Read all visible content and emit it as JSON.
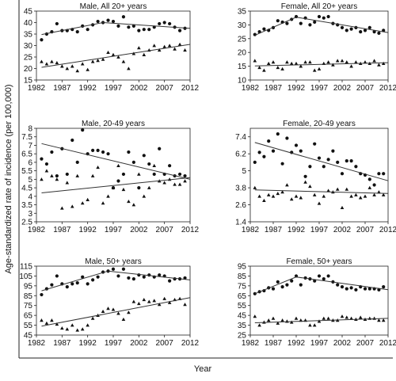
{
  "figure": {
    "ylabel": "Age-standardized rate of incidence (per 100,000)",
    "xlabel": "Year"
  },
  "chart_data": [
    {
      "type": "scatter",
      "title": "Male, All 20+ years",
      "xlim": [
        1982,
        2012
      ],
      "ylim": [
        15,
        45
      ],
      "xticks": [
        "1982",
        "1987",
        "1992",
        "1997",
        "2002",
        "2007",
        "2012"
      ],
      "yticks": [
        15,
        20,
        25,
        30,
        35,
        40,
        45
      ],
      "ytick_labels": [
        "15",
        "20",
        "25",
        "30",
        "35",
        "40",
        "45"
      ],
      "series": [
        {
          "marker": "circle",
          "x": [
            1983,
            1984,
            1985,
            1986,
            1987,
            1988,
            1989,
            1990,
            1991,
            1992,
            1993,
            1994,
            1995,
            1996,
            1997,
            1998,
            1999,
            2000,
            2001,
            2002,
            2003,
            2004,
            2005,
            2006,
            2007,
            2008,
            2009,
            2010,
            2011
          ],
          "y": [
            32.5,
            35,
            36,
            39.5,
            36.5,
            36.5,
            37,
            36,
            38.5,
            37,
            39,
            40.5,
            40,
            41,
            40.5,
            38.5,
            42.5,
            38,
            38.5,
            36.5,
            37,
            37,
            38,
            39.5,
            40,
            39.5,
            38,
            36.5,
            37.5
          ],
          "fit": [
            [
              1983,
              34.8
            ],
            [
              1995,
              40
            ],
            [
              2012,
              37.5
            ]
          ]
        },
        {
          "marker": "triangle",
          "x": [
            1983,
            1984,
            1985,
            1986,
            1987,
            1988,
            1989,
            1990,
            1991,
            1992,
            1993,
            1994,
            1995,
            1996,
            1997,
            1998,
            1999,
            2000,
            2001,
            2002,
            2003,
            2004,
            2005,
            2006,
            2007,
            2008,
            2009,
            2010,
            2011
          ],
          "y": [
            23,
            22,
            23,
            22.5,
            21,
            20,
            21,
            19,
            22,
            19.5,
            23,
            23.5,
            24,
            27,
            26,
            25,
            23,
            20,
            26.5,
            29,
            26,
            28,
            30,
            28,
            29.5,
            30,
            28.5,
            30.5,
            28
          ],
          "fit": [
            [
              1983,
              20.5
            ],
            [
              2012,
              30.5
            ]
          ]
        }
      ]
    },
    {
      "type": "scatter",
      "title": "Female, All 20+ years",
      "xlim": [
        1982,
        2012
      ],
      "ylim": [
        10,
        35
      ],
      "xticks": [
        "1982",
        "1987",
        "1992",
        "1997",
        "2002",
        "2007",
        "2012"
      ],
      "yticks": [
        10,
        15,
        20,
        25,
        30,
        35
      ],
      "ytick_labels": [
        "10",
        "15",
        "20",
        "25",
        "30",
        "35"
      ],
      "series": [
        {
          "marker": "circle",
          "x": [
            1983,
            1984,
            1985,
            1986,
            1987,
            1988,
            1989,
            1990,
            1991,
            1992,
            1993,
            1994,
            1995,
            1996,
            1997,
            1998,
            1999,
            2000,
            2001,
            2002,
            2003,
            2004,
            2005,
            2006,
            2007,
            2008,
            2009,
            2010,
            2011
          ],
          "y": [
            26.5,
            27.5,
            28.5,
            28,
            29,
            31.5,
            31,
            30.5,
            32,
            33,
            30.5,
            32.5,
            30,
            31,
            33,
            32.5,
            33,
            30.5,
            30,
            29,
            28,
            28.5,
            29,
            27.5,
            28,
            29,
            27.5,
            27,
            28
          ],
          "fit": [
            [
              1983,
              26.2
            ],
            [
              1992,
              32.8
            ],
            [
              2012,
              27.2
            ]
          ]
        },
        {
          "marker": "triangle",
          "x": [
            1983,
            1984,
            1985,
            1986,
            1987,
            1988,
            1989,
            1990,
            1991,
            1992,
            1993,
            1994,
            1995,
            1996,
            1997,
            1998,
            1999,
            2000,
            2001,
            2002,
            2003,
            2004,
            2005,
            2006,
            2007,
            2008,
            2009,
            2010,
            2011
          ],
          "y": [
            17,
            14.5,
            13.5,
            16,
            16.5,
            14.5,
            14,
            16.5,
            16,
            16,
            15,
            16.5,
            16.5,
            13.5,
            14,
            16,
            16.5,
            15.5,
            17,
            17,
            16.5,
            15,
            16.5,
            16,
            16.5,
            16,
            17,
            15.5,
            16
          ],
          "fit": [
            [
              1983,
              15.1
            ],
            [
              2012,
              16.3
            ]
          ]
        }
      ]
    },
    {
      "type": "scatter",
      "title": "Male, 20-49 years",
      "xlim": [
        1982,
        2012
      ],
      "ylim": [
        2.5,
        8
      ],
      "xticks": [
        "1982",
        "1987",
        "1992",
        "1997",
        "2002",
        "2007",
        "2012"
      ],
      "yticks": [
        2.5,
        3,
        3.5,
        4,
        4.5,
        5,
        5.5,
        6,
        6.5,
        7,
        7.5,
        8
      ],
      "ytick_labels": [
        "2.5",
        "3",
        "3.5",
        "4",
        "4.5",
        "5",
        "5.5",
        "6",
        "6.5",
        "7",
        "7.5",
        "8"
      ],
      "series": [
        {
          "marker": "circle",
          "x": [
            1983,
            1984,
            1985,
            1986,
            1987,
            1988,
            1989,
            1990,
            1991,
            1992,
            1993,
            1994,
            1995,
            1996,
            1997,
            1998,
            1999,
            2000,
            2001,
            2002,
            2003,
            2004,
            2005,
            2006,
            2007,
            2008,
            2009,
            2010,
            2011
          ],
          "y": [
            6.2,
            5.9,
            6.6,
            5.2,
            6.8,
            5.3,
            7.3,
            6.0,
            7.9,
            6.5,
            6.7,
            6.7,
            6.6,
            6.5,
            4.5,
            4.9,
            5.3,
            6.6,
            6.0,
            4.5,
            6.4,
            5.9,
            5.3,
            6.8,
            5.3,
            5.8,
            5.2,
            5.3,
            5.2
          ],
          "fit": [
            [
              1983,
              7.1
            ],
            [
              2012,
              5.0
            ]
          ]
        },
        {
          "marker": "triangle",
          "x": [
            1983,
            1984,
            1985,
            1986,
            1987,
            1988,
            1989,
            1990,
            1991,
            1992,
            1993,
            1994,
            1995,
            1996,
            1997,
            1998,
            1999,
            2000,
            2001,
            2002,
            2003,
            2004,
            2005,
            2006,
            2007,
            2008,
            2009,
            2010,
            2011
          ],
          "y": [
            5.0,
            5.5,
            5.2,
            5.0,
            3.3,
            4.8,
            3.4,
            5.2,
            3.6,
            3.8,
            5.2,
            5.7,
            3.6,
            4.0,
            4.5,
            5.8,
            4.4,
            3.7,
            3.5,
            5.3,
            4.0,
            4.5,
            5.8,
            4.9,
            4.8,
            5.0,
            4.7,
            4.7,
            4.9
          ],
          "fit": [
            [
              1983,
              4.2
            ],
            [
              2012,
              5.1
            ]
          ]
        }
      ]
    },
    {
      "type": "scatter",
      "title": "Female, 20-49 years",
      "xlim": [
        1982,
        2012
      ],
      "ylim": [
        1.4,
        8
      ],
      "xticks": [
        "1982",
        "1987",
        "1992",
        "1997",
        "2002",
        "2007",
        "2012"
      ],
      "yticks": [
        1.4,
        2.6,
        3.8,
        5,
        6.2,
        7.4
      ],
      "ytick_labels": [
        "1.4",
        "2.6",
        "3.8",
        "5",
        "6.2",
        "7.4"
      ],
      "series": [
        {
          "marker": "circle",
          "x": [
            1983,
            1984,
            1985,
            1986,
            1987,
            1988,
            1989,
            1990,
            1991,
            1992,
            1993,
            1994,
            1995,
            1996,
            1997,
            1998,
            1999,
            2000,
            2001,
            2002,
            2003,
            2004,
            2005,
            2006,
            2007,
            2008,
            2009,
            2010,
            2011
          ],
          "y": [
            5.6,
            6.3,
            6.0,
            7.1,
            6.4,
            7.6,
            5.5,
            7.3,
            6.3,
            6.8,
            6.4,
            4.6,
            5.3,
            6.9,
            5.9,
            5.3,
            5.8,
            6.4,
            5.6,
            4.8,
            5.7,
            5.7,
            5.3,
            4.8,
            4.7,
            4.4,
            4.0,
            4.8,
            4.8
          ],
          "fit": [
            [
              1983,
              7.0
            ],
            [
              2012,
              4.3
            ]
          ]
        },
        {
          "marker": "triangle",
          "x": [
            1983,
            1984,
            1985,
            1986,
            1987,
            1988,
            1989,
            1990,
            1991,
            1992,
            1993,
            1994,
            1995,
            1996,
            1997,
            1998,
            1999,
            2000,
            2001,
            2002,
            2003,
            2004,
            2005,
            2006,
            2007,
            2008,
            2009,
            2010,
            2011
          ],
          "y": [
            3.8,
            3.2,
            2.9,
            3.3,
            3.2,
            3.4,
            3.5,
            4.0,
            3.0,
            3.2,
            3.1,
            4.2,
            3.9,
            3.3,
            2.7,
            3.2,
            3.6,
            3.5,
            3.7,
            2.4,
            3.7,
            3.2,
            3.3,
            3.1,
            3.2,
            3.8,
            3.3,
            3.5,
            3.3
          ],
          "fit": [
            [
              1983,
              3.65
            ],
            [
              2012,
              3.4
            ]
          ]
        }
      ]
    },
    {
      "type": "scatter",
      "title": "Male, 50+ years",
      "xlim": [
        1982,
        2012
      ],
      "ylim": [
        45,
        115
      ],
      "xticks": [
        "1982",
        "1987",
        "1992",
        "1997",
        "2002",
        "2007",
        "2012"
      ],
      "yticks": [
        45,
        55,
        65,
        75,
        85,
        95,
        105,
        115
      ],
      "ytick_labels": [
        "45",
        "55",
        "65",
        "75",
        "85",
        "95",
        "105",
        "115"
      ],
      "series": [
        {
          "marker": "circle",
          "x": [
            1983,
            1984,
            1985,
            1986,
            1987,
            1988,
            1989,
            1990,
            1991,
            1992,
            1993,
            1994,
            1995,
            1996,
            1997,
            1998,
            1999,
            2000,
            2001,
            2002,
            2003,
            2004,
            2005,
            2006,
            2007,
            2008,
            2009,
            2010,
            2011
          ],
          "y": [
            86,
            92,
            96,
            105,
            97,
            94,
            97,
            98,
            104,
            97,
            101,
            104,
            109,
            110,
            112,
            105,
            112,
            103,
            102,
            106,
            104,
            106,
            104,
            106,
            105,
            100,
            102,
            102,
            103
          ],
          "fit": [
            [
              1983,
              90
            ],
            [
              1996,
              110
            ],
            [
              2012,
              101
            ]
          ]
        },
        {
          "marker": "triangle",
          "x": [
            1983,
            1984,
            1985,
            1986,
            1987,
            1988,
            1989,
            1990,
            1991,
            1992,
            1993,
            1994,
            1995,
            1996,
            1997,
            1998,
            1999,
            2000,
            2001,
            2002,
            2003,
            2004,
            2005,
            2006,
            2007,
            2008,
            2009,
            2010,
            2011
          ],
          "y": [
            60,
            57,
            60,
            56,
            52,
            51,
            55,
            50,
            51,
            55,
            62,
            65,
            69,
            72,
            71,
            67,
            61,
            68,
            79,
            77,
            81,
            79,
            80,
            76,
            82,
            78,
            81,
            82,
            76
          ],
          "fit": [
            [
              1983,
              54
            ],
            [
              2012,
              83
            ]
          ]
        }
      ]
    },
    {
      "type": "scatter",
      "title": "Female, 50+ years",
      "xlim": [
        1982,
        2012
      ],
      "ylim": [
        25,
        95
      ],
      "xticks": [
        "1982",
        "1987",
        "1992",
        "1997",
        "2002",
        "2007",
        "2012"
      ],
      "yticks": [
        25,
        35,
        45,
        55,
        65,
        75,
        85,
        95
      ],
      "ytick_labels": [
        "25",
        "35",
        "45",
        "55",
        "65",
        "75",
        "85",
        "95"
      ],
      "series": [
        {
          "marker": "circle",
          "x": [
            1983,
            1984,
            1985,
            1986,
            1987,
            1988,
            1989,
            1990,
            1991,
            1992,
            1993,
            1994,
            1995,
            1996,
            1997,
            1998,
            1999,
            2000,
            2001,
            2002,
            2003,
            2004,
            2005,
            2006,
            2007,
            2008,
            2009,
            2010,
            2011
          ],
          "y": [
            67,
            69,
            70,
            73,
            72,
            79,
            74,
            76,
            80,
            85,
            76,
            83,
            82,
            80,
            85,
            82,
            85,
            79,
            76,
            74,
            72,
            73,
            71,
            74,
            72,
            72,
            72,
            71,
            74
          ],
          "fit": [
            [
              1983,
              67
            ],
            [
              1992,
              84
            ],
            [
              2012,
              71
            ]
          ]
        },
        {
          "marker": "triangle",
          "x": [
            1983,
            1984,
            1985,
            1986,
            1987,
            1988,
            1989,
            1990,
            1991,
            1992,
            1993,
            1994,
            1995,
            1996,
            1997,
            1998,
            1999,
            2000,
            2001,
            2002,
            2003,
            2004,
            2005,
            2006,
            2007,
            2008,
            2009,
            2010,
            2011
          ],
          "y": [
            44,
            35,
            38,
            40,
            42,
            37,
            40,
            39,
            38,
            42,
            40,
            40,
            35,
            35,
            39,
            42,
            42,
            40,
            40,
            44,
            43,
            42,
            41,
            43,
            41,
            42,
            42,
            40,
            40
          ],
          "fit": [
            [
              1983,
              37.5
            ],
            [
              2012,
              42
            ]
          ]
        }
      ]
    }
  ]
}
